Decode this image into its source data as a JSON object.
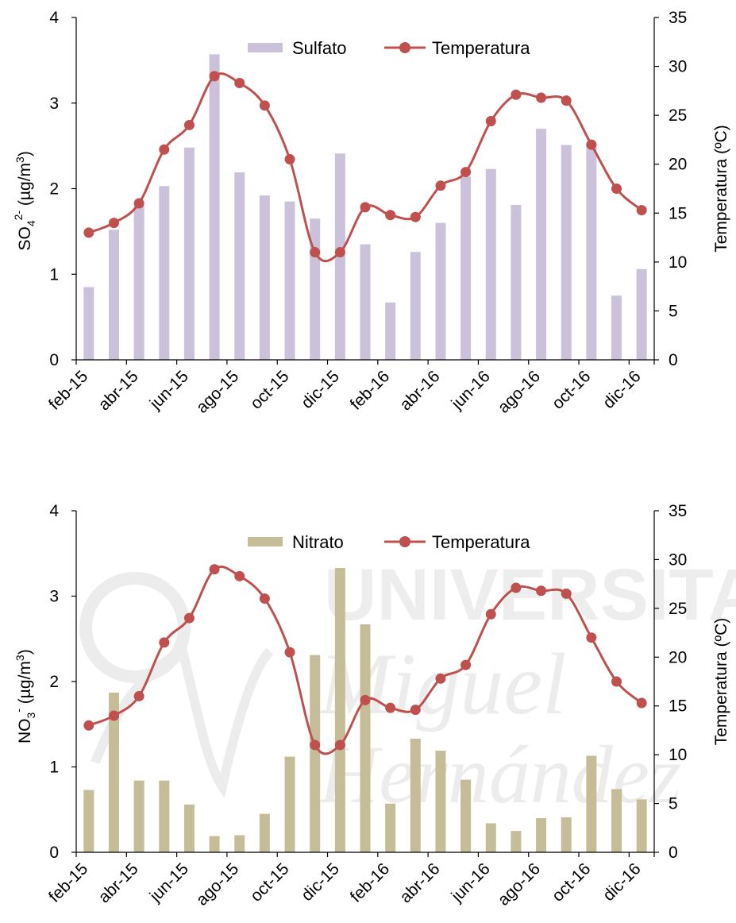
{
  "chart_data": [
    {
      "type": "bar+line",
      "bar_series": {
        "name": "Sulfato",
        "color": "#ccc1da",
        "values": [
          0.85,
          1.52,
          1.8,
          2.03,
          2.48,
          3.57,
          2.19,
          1.92,
          1.85,
          1.65,
          2.41,
          1.35,
          0.67,
          1.26,
          1.6,
          2.14,
          2.23,
          1.81,
          2.7,
          2.51,
          2.53,
          0.75,
          1.06
        ]
      },
      "line_series": {
        "name": "Temperatura",
        "color": "#c0504d",
        "values": [
          13.0,
          14.0,
          16.0,
          21.5,
          24.0,
          29.0,
          28.3,
          26.0,
          20.5,
          11.0,
          11.0,
          15.6,
          14.8,
          14.6,
          17.8,
          19.2,
          24.4,
          27.1,
          26.8,
          26.5,
          22.0,
          17.5,
          15.3
        ]
      },
      "ylabel_left_main": "SO",
      "ylabel_left_sub": "4",
      "ylabel_left_sup": "2-",
      "ylabel_left_unit": " (µg/m",
      "ylabel_left_unit_sup": "3",
      "ylabel_left_close": ")",
      "ylabel_right": "Temperatura (ºC)",
      "ylim_left": [
        0,
        4
      ],
      "ylim_right": [
        0,
        35
      ],
      "yticks_left": [
        "0",
        "1",
        "2",
        "3",
        "4"
      ],
      "yticks_right": [
        "0",
        "5",
        "10",
        "15",
        "20",
        "25",
        "30",
        "35"
      ],
      "xticks": [
        "feb-15",
        "abr-15",
        "jun-15",
        "ago-15",
        "oct-15",
        "dic-15",
        "feb-16",
        "abr-16",
        "jun-16",
        "ago-16",
        "oct-16",
        "dic-16"
      ],
      "legend": "top-center"
    },
    {
      "type": "bar+line",
      "bar_series": {
        "name": "Nitrato",
        "color": "#c4bd97",
        "values": [
          0.73,
          1.87,
          0.84,
          0.84,
          0.56,
          0.19,
          0.2,
          0.45,
          1.12,
          2.31,
          3.33,
          2.67,
          0.57,
          1.33,
          1.19,
          0.85,
          0.34,
          0.25,
          0.4,
          0.41,
          1.13,
          0.74,
          0.62
        ]
      },
      "line_series": {
        "name": "Temperatura",
        "color": "#c0504d",
        "values": [
          13.0,
          14.0,
          16.0,
          21.5,
          24.0,
          29.0,
          28.3,
          26.0,
          20.5,
          11.0,
          11.0,
          15.6,
          14.8,
          14.6,
          17.8,
          19.2,
          24.4,
          27.1,
          26.8,
          26.5,
          22.0,
          17.5,
          15.3
        ]
      },
      "ylabel_left_main": "NO",
      "ylabel_left_sub": "3",
      "ylabel_left_sup": "-",
      "ylabel_left_unit": " (µg/m",
      "ylabel_left_unit_sup": "3",
      "ylabel_left_close": ")",
      "ylabel_right": "Temperatura (ºC)",
      "ylim_left": [
        0,
        4
      ],
      "ylim_right": [
        0,
        35
      ],
      "yticks_left": [
        "0",
        "1",
        "2",
        "3",
        "4"
      ],
      "yticks_right": [
        "0",
        "5",
        "10",
        "15",
        "20",
        "25",
        "30",
        "35"
      ],
      "xticks": [
        "feb-15",
        "abr-15",
        "jun-15",
        "ago-15",
        "oct-15",
        "dic-15",
        "feb-16",
        "abr-16",
        "jun-16",
        "ago-16",
        "oct-16",
        "dic-16"
      ],
      "legend": "top-center"
    }
  ],
  "watermark": {
    "line1": "UNIVERSITAS",
    "line2": "Miguel",
    "line3": "Hernández",
    "color": "#e6e6e6"
  }
}
